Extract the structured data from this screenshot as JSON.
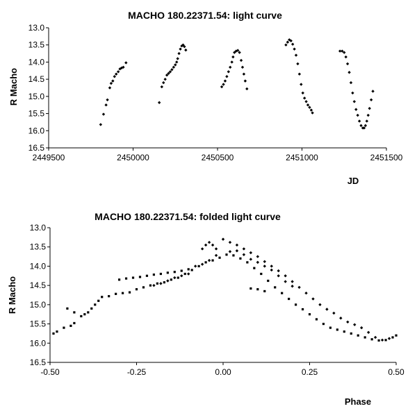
{
  "chart_data": [
    {
      "type": "scatter",
      "title": "MACHO 180.22371.54: light curve",
      "xlabel": "JD",
      "ylabel": "R Macho",
      "xlim": [
        2449500,
        2451500
      ],
      "ylim": [
        13.0,
        16.5
      ],
      "y_inverted": true,
      "xticks": [
        2449500,
        2450000,
        2450500,
        2451000,
        2451500
      ],
      "yticks": [
        13.0,
        13.5,
        14.0,
        14.5,
        15.0,
        15.5,
        16.0,
        16.5
      ],
      "xtick_labels": [
        "2449500",
        "2450000",
        "2450500",
        "2451000",
        "2451500"
      ],
      "ytick_labels": [
        "13.0",
        "13.5",
        "14.0",
        "14.5",
        "15.0",
        "15.5",
        "16.0",
        "16.5"
      ],
      "grid": false,
      "marker_color": "#000000",
      "series": [
        {
          "marker": "diamond",
          "points": [
            [
              2449808,
              15.82
            ],
            [
              2449825,
              15.52
            ],
            [
              2449840,
              15.25
            ],
            [
              2449848,
              15.1
            ],
            [
              2449862,
              14.75
            ],
            [
              2449870,
              14.62
            ],
            [
              2449880,
              14.55
            ],
            [
              2449890,
              14.42
            ],
            [
              2449900,
              14.35
            ],
            [
              2449912,
              14.28
            ],
            [
              2449922,
              14.2
            ],
            [
              2449932,
              14.17
            ],
            [
              2449942,
              14.15
            ],
            [
              2449958,
              14.02
            ],
            [
              2450155,
              15.18
            ],
            [
              2450170,
              14.72
            ],
            [
              2450180,
              14.6
            ],
            [
              2450190,
              14.5
            ],
            [
              2450200,
              14.38
            ],
            [
              2450210,
              14.33
            ],
            [
              2450220,
              14.28
            ],
            [
              2450230,
              14.22
            ],
            [
              2450240,
              14.15
            ],
            [
              2450250,
              14.08
            ],
            [
              2450258,
              14.0
            ],
            [
              2450264,
              13.9
            ],
            [
              2450272,
              13.75
            ],
            [
              2450280,
              13.62
            ],
            [
              2450288,
              13.53
            ],
            [
              2450296,
              13.5
            ],
            [
              2450304,
              13.55
            ],
            [
              2450312,
              13.65
            ],
            [
              2450525,
              14.72
            ],
            [
              2450535,
              14.65
            ],
            [
              2450545,
              14.55
            ],
            [
              2450555,
              14.42
            ],
            [
              2450565,
              14.28
            ],
            [
              2450575,
              14.15
            ],
            [
              2450585,
              14.0
            ],
            [
              2450592,
              13.85
            ],
            [
              2450600,
              13.72
            ],
            [
              2450610,
              13.68
            ],
            [
              2450620,
              13.66
            ],
            [
              2450630,
              13.72
            ],
            [
              2450640,
              13.95
            ],
            [
              2450648,
              14.15
            ],
            [
              2450656,
              14.35
            ],
            [
              2450664,
              14.55
            ],
            [
              2450674,
              14.78
            ],
            [
              2450905,
              13.5
            ],
            [
              2450915,
              13.42
            ],
            [
              2450925,
              13.35
            ],
            [
              2450935,
              13.38
            ],
            [
              2450945,
              13.48
            ],
            [
              2450955,
              13.62
            ],
            [
              2450965,
              13.8
            ],
            [
              2450975,
              14.05
            ],
            [
              2450985,
              14.35
            ],
            [
              2450995,
              14.65
            ],
            [
              2451005,
              14.9
            ],
            [
              2451015,
              15.05
            ],
            [
              2451025,
              15.15
            ],
            [
              2451035,
              15.25
            ],
            [
              2451045,
              15.32
            ],
            [
              2451055,
              15.4
            ],
            [
              2451062,
              15.48
            ],
            [
              2451225,
              13.68
            ],
            [
              2451238,
              13.68
            ],
            [
              2451250,
              13.72
            ],
            [
              2451260,
              13.85
            ],
            [
              2451270,
              14.05
            ],
            [
              2451280,
              14.3
            ],
            [
              2451290,
              14.6
            ],
            [
              2451300,
              14.9
            ],
            [
              2451310,
              15.15
            ],
            [
              2451320,
              15.38
            ],
            [
              2451330,
              15.55
            ],
            [
              2451340,
              15.72
            ],
            [
              2451350,
              15.85
            ],
            [
              2451360,
              15.92
            ],
            [
              2451368,
              15.92
            ],
            [
              2451376,
              15.85
            ],
            [
              2451384,
              15.72
            ],
            [
              2451392,
              15.55
            ],
            [
              2451400,
              15.35
            ],
            [
              2451410,
              15.1
            ],
            [
              2451420,
              14.85
            ]
          ]
        }
      ]
    },
    {
      "type": "scatter",
      "title": "MACHO 180.22371.54: folded light curve",
      "xlabel": "Phase",
      "ylabel": "R Macho",
      "xlim": [
        -0.5,
        0.5
      ],
      "ylim": [
        13.0,
        16.5
      ],
      "y_inverted": true,
      "xticks": [
        -0.5,
        -0.25,
        0.0,
        0.25,
        0.5
      ],
      "yticks": [
        13.0,
        13.5,
        14.0,
        14.5,
        15.0,
        15.5,
        16.0,
        16.5
      ],
      "xtick_labels": [
        "-0.50",
        "-0.25",
        "0.00",
        "0.25",
        "0.50"
      ],
      "ytick_labels": [
        "13.0",
        "13.5",
        "14.0",
        "14.5",
        "15.0",
        "15.5",
        "16.0",
        "16.5"
      ],
      "grid": false,
      "marker_color": "#000000",
      "series": [
        {
          "marker": "square",
          "points": [
            [
              -0.49,
              15.75
            ],
            [
              -0.48,
              15.7
            ],
            [
              -0.46,
              15.6
            ],
            [
              -0.44,
              15.55
            ],
            [
              -0.43,
              15.48
            ],
            [
              -0.45,
              15.1
            ],
            [
              -0.43,
              15.2
            ],
            [
              -0.41,
              15.3
            ],
            [
              -0.4,
              15.25
            ],
            [
              -0.39,
              15.2
            ],
            [
              -0.38,
              15.1
            ],
            [
              -0.37,
              15.0
            ],
            [
              -0.36,
              14.9
            ],
            [
              -0.35,
              14.8
            ],
            [
              -0.33,
              14.78
            ],
            [
              -0.31,
              14.72
            ],
            [
              -0.29,
              14.7
            ],
            [
              -0.27,
              14.68
            ],
            [
              -0.25,
              14.6
            ],
            [
              -0.23,
              14.55
            ],
            [
              -0.21,
              14.5
            ],
            [
              -0.19,
              14.45
            ],
            [
              -0.17,
              14.42
            ],
            [
              -0.15,
              14.35
            ],
            [
              -0.13,
              14.3
            ],
            [
              -0.11,
              14.2
            ],
            [
              -0.09,
              14.1
            ],
            [
              -0.07,
              14.0
            ],
            [
              -0.05,
              13.9
            ],
            [
              -0.03,
              13.85
            ],
            [
              -0.01,
              13.78
            ],
            [
              0.01,
              13.7
            ],
            [
              0.03,
              13.72
            ],
            [
              0.05,
              13.8
            ],
            [
              0.07,
              13.9
            ],
            [
              0.09,
              14.05
            ],
            [
              0.11,
              14.2
            ],
            [
              0.13,
              14.38
            ],
            [
              0.15,
              14.55
            ],
            [
              0.17,
              14.7
            ],
            [
              0.19,
              14.85
            ],
            [
              0.21,
              15.0
            ],
            [
              0.23,
              15.12
            ],
            [
              0.25,
              15.25
            ],
            [
              0.27,
              15.38
            ],
            [
              0.29,
              15.5
            ],
            [
              0.31,
              15.6
            ],
            [
              0.33,
              15.65
            ],
            [
              0.35,
              15.7
            ],
            [
              0.37,
              15.75
            ],
            [
              0.39,
              15.8
            ],
            [
              0.41,
              15.85
            ],
            [
              0.43,
              15.9
            ],
            [
              0.45,
              15.93
            ],
            [
              0.47,
              15.92
            ],
            [
              0.49,
              15.85
            ],
            [
              0.5,
              15.8
            ],
            [
              0.1,
              14.6
            ],
            [
              0.12,
              14.65
            ],
            [
              0.08,
              14.58
            ],
            [
              -0.3,
              14.35
            ],
            [
              -0.28,
              14.32
            ],
            [
              -0.26,
              14.3
            ],
            [
              -0.24,
              14.28
            ],
            [
              -0.22,
              14.25
            ],
            [
              -0.2,
              14.22
            ],
            [
              -0.18,
              14.2
            ],
            [
              -0.16,
              14.17
            ],
            [
              -0.14,
              14.15
            ],
            [
              -0.12,
              14.12
            ],
            [
              -0.1,
              14.08
            ]
          ]
        },
        {
          "marker": "diamond",
          "points": [
            [
              -0.06,
              13.55
            ],
            [
              -0.05,
              13.45
            ],
            [
              -0.04,
              13.38
            ],
            [
              -0.03,
              13.45
            ],
            [
              -0.02,
              13.55
            ],
            [
              0.0,
              13.3
            ],
            [
              0.02,
              13.38
            ],
            [
              0.04,
              13.45
            ],
            [
              0.06,
              13.55
            ],
            [
              0.08,
              13.65
            ],
            [
              0.1,
              13.75
            ],
            [
              0.12,
              13.88
            ],
            [
              0.14,
              14.0
            ],
            [
              0.16,
              14.12
            ],
            [
              0.18,
              14.25
            ],
            [
              0.2,
              14.4
            ],
            [
              0.22,
              14.55
            ],
            [
              0.24,
              14.7
            ],
            [
              0.26,
              14.85
            ],
            [
              0.28,
              15.0
            ],
            [
              0.3,
              15.12
            ],
            [
              0.32,
              15.22
            ],
            [
              0.34,
              15.35
            ],
            [
              0.36,
              15.45
            ],
            [
              0.38,
              15.52
            ],
            [
              0.4,
              15.6
            ],
            [
              0.42,
              15.72
            ],
            [
              0.44,
              15.85
            ],
            [
              0.46,
              15.92
            ],
            [
              0.48,
              15.88
            ],
            [
              -0.2,
              14.5
            ],
            [
              -0.18,
              14.45
            ],
            [
              -0.16,
              14.38
            ],
            [
              -0.14,
              14.3
            ],
            [
              -0.12,
              14.25
            ],
            [
              -0.1,
              14.2
            ],
            [
              -0.08,
              14.0
            ],
            [
              -0.06,
              13.95
            ],
            [
              -0.04,
              13.85
            ],
            [
              -0.02,
              13.72
            ],
            [
              0.02,
              13.62
            ],
            [
              0.04,
              13.6
            ],
            [
              0.06,
              13.7
            ],
            [
              0.08,
              13.82
            ],
            [
              0.1,
              13.9
            ],
            [
              0.12,
              14.0
            ],
            [
              0.14,
              14.1
            ],
            [
              0.16,
              14.25
            ],
            [
              0.18,
              14.4
            ],
            [
              0.2,
              14.52
            ]
          ]
        }
      ]
    }
  ]
}
